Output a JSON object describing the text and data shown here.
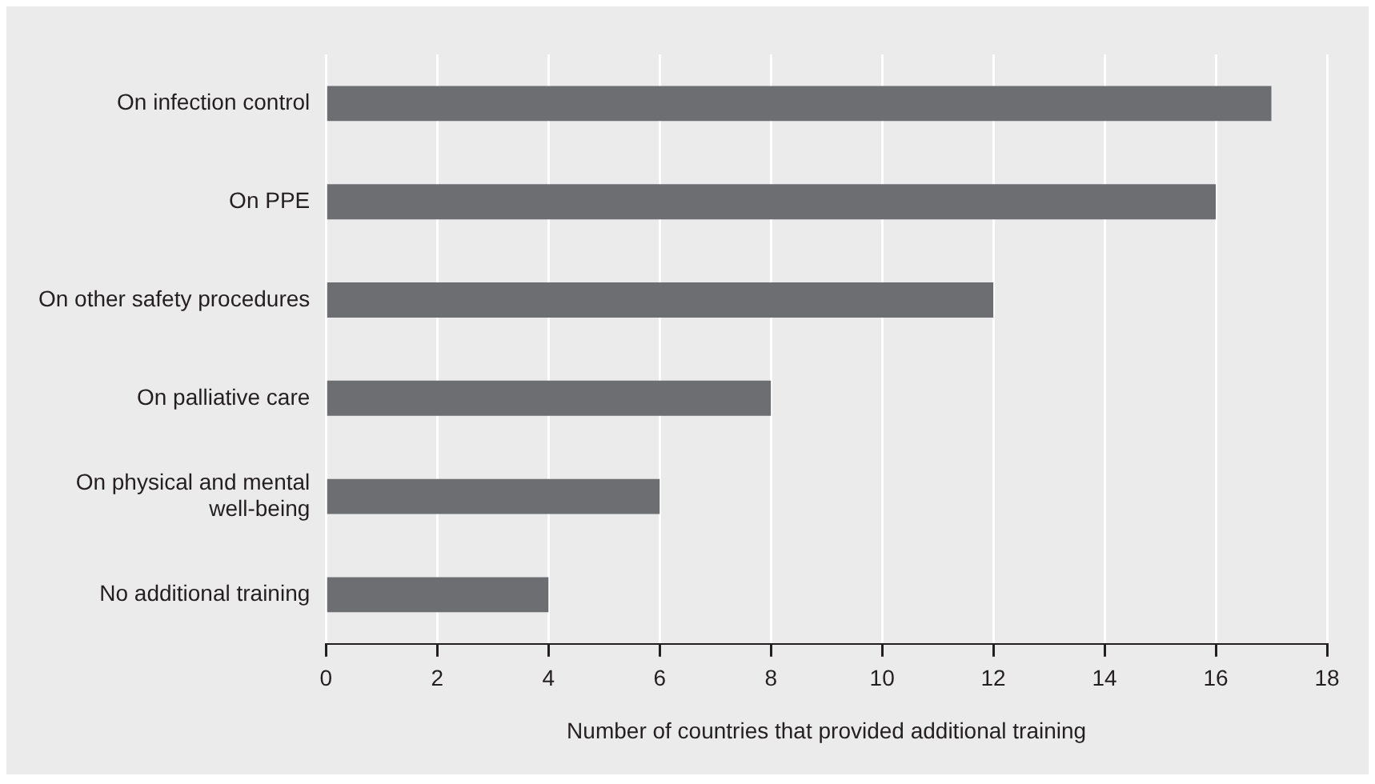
{
  "chart_data": {
    "type": "bar",
    "orientation": "horizontal",
    "xlabel": "Number of countries that provided additional training",
    "categories": [
      "On infection control",
      "On PPE",
      "On other safety procedures",
      "On palliative care",
      "On physical and mental well-being",
      "No additional training"
    ],
    "values": [
      17,
      16,
      12,
      8,
      6,
      4
    ],
    "color": "#6d6e71",
    "xlim": [
      0,
      18
    ],
    "xticks": [
      0,
      2,
      4,
      6,
      8,
      10,
      12,
      14,
      16,
      18
    ],
    "grid": "x",
    "legend": false
  }
}
